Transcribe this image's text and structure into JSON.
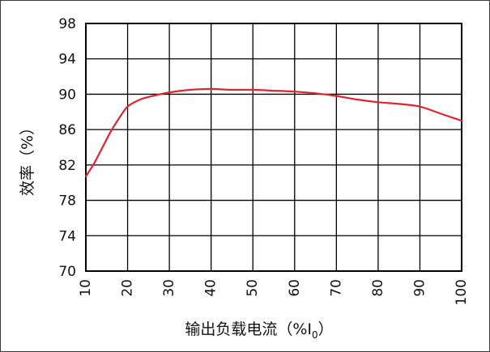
{
  "chart_data": {
    "type": "line",
    "title": "",
    "xlabel": "输出负载电流（%I",
    "xlabel_subscript": "0",
    "xlabel_close": "）",
    "ylabel": "效率（%）",
    "x_ticks": [
      "10",
      "20",
      "30",
      "40",
      "50",
      "60",
      "70",
      "80",
      "90",
      "100"
    ],
    "y_ticks": [
      "70",
      "74",
      "78",
      "82",
      "86",
      "90",
      "94",
      "98"
    ],
    "xlim": [
      10,
      100
    ],
    "ylim": [
      70,
      98
    ],
    "grid": true,
    "series": [
      {
        "color": "#e0262b",
        "x": [
          10,
          12,
          14,
          16,
          18,
          20,
          23,
          26,
          30,
          35,
          40,
          45,
          50,
          55,
          60,
          65,
          70,
          75,
          80,
          85,
          90,
          95,
          100
        ],
        "y": [
          80.7,
          82.2,
          84.0,
          85.8,
          87.3,
          88.6,
          89.4,
          89.8,
          90.2,
          90.5,
          90.6,
          90.5,
          90.5,
          90.4,
          90.3,
          90.1,
          89.8,
          89.4,
          89.1,
          88.9,
          88.6,
          87.8,
          87.0
        ]
      }
    ]
  }
}
